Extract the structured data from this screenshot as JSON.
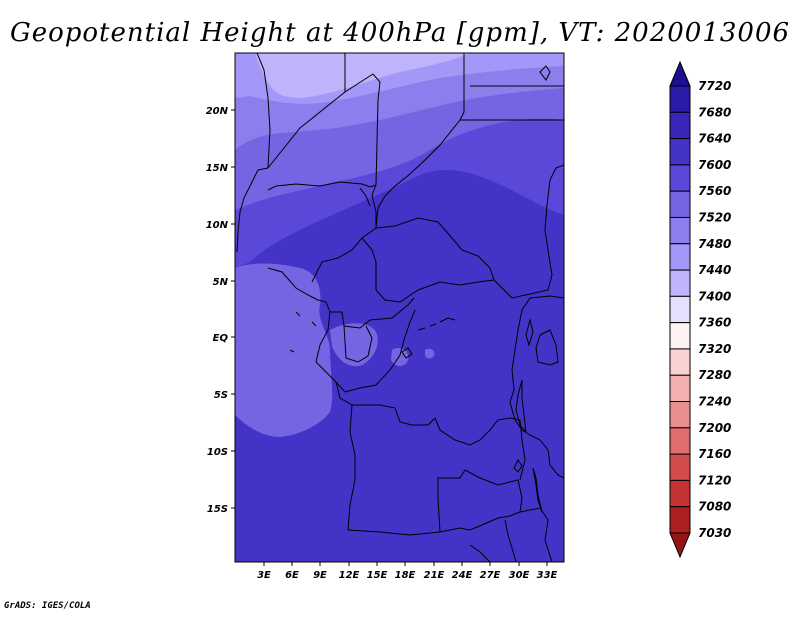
{
  "title": "Geopotential Height at 400hPa [gpm], VT: 2020013006",
  "footer": "GrADS: IGES/COLA",
  "map": {
    "lon_ticks": [
      "3E",
      "6E",
      "9E",
      "12E",
      "15E",
      "18E",
      "21E",
      "24E",
      "27E",
      "30E",
      "33E"
    ],
    "lat_ticks": [
      "20N",
      "15N",
      "10N",
      "5N",
      "EQ",
      "5S",
      "10S",
      "15S"
    ],
    "field_colors": {
      "7440": "#bfb3fb",
      "7480": "#a397f7",
      "7520": "#8b7fee",
      "7560": "#7565e3",
      "7600": "#5a48d8",
      "7640": "#4433c7"
    }
  },
  "colorbar": {
    "levels": [
      "7720",
      "7680",
      "7640",
      "7600",
      "7560",
      "7520",
      "7480",
      "7440",
      "7400",
      "7360",
      "7320",
      "7280",
      "7240",
      "7200",
      "7160",
      "7120",
      "7080",
      "7030"
    ],
    "colors": [
      "#1d0f8f",
      "#2a1ba8",
      "#3726b8",
      "#4433c7",
      "#5a48d8",
      "#7565e3",
      "#8b7fee",
      "#a397f7",
      "#bfb3fb",
      "#e4e0fd",
      "#fdf1f1",
      "#fbd2d2",
      "#f4b0b0",
      "#ea8f8f",
      "#e06e6e",
      "#d44d4d",
      "#c43232",
      "#ae1f1f",
      "#951414"
    ]
  }
}
